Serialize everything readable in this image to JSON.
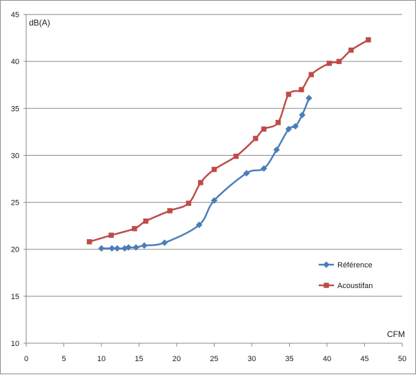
{
  "chart_data": {
    "type": "line",
    "title": "",
    "xlabel": "CFM",
    "ylabel": "dB(A)",
    "xlim": [
      0,
      50
    ],
    "ylim": [
      10,
      45
    ],
    "x_ticks": [
      0,
      5,
      10,
      15,
      20,
      25,
      30,
      35,
      40,
      45,
      50
    ],
    "y_ticks": [
      10,
      15,
      20,
      25,
      30,
      35,
      40,
      45
    ],
    "grid": "horizontal",
    "legend_position": "right",
    "series": [
      {
        "name": "Référence",
        "color": "#4a7ebb",
        "marker": "diamond",
        "x": [
          10.0,
          11.4,
          12.1,
          13.1,
          13.6,
          14.6,
          15.7,
          18.4,
          23.0,
          25.0,
          29.3,
          31.6,
          33.3,
          34.9,
          35.8,
          36.7,
          37.6
        ],
        "y": [
          20.1,
          20.1,
          20.1,
          20.1,
          20.2,
          20.2,
          20.4,
          20.7,
          22.6,
          25.2,
          28.1,
          28.6,
          30.6,
          32.8,
          33.1,
          34.3,
          36.1
        ]
      },
      {
        "name": "Acoustifan",
        "color": "#be4b48",
        "marker": "square",
        "x": [
          8.4,
          11.3,
          14.4,
          15.9,
          19.1,
          21.6,
          23.2,
          25.0,
          27.9,
          30.5,
          31.6,
          33.5,
          34.9,
          36.6,
          37.9,
          40.3,
          41.6,
          43.2,
          45.5
        ],
        "y": [
          20.8,
          21.5,
          22.2,
          23.0,
          24.1,
          24.9,
          27.1,
          28.5,
          29.9,
          31.8,
          32.8,
          33.5,
          36.5,
          37.0,
          38.6,
          39.8,
          40.0,
          41.2,
          42.3
        ]
      }
    ]
  }
}
